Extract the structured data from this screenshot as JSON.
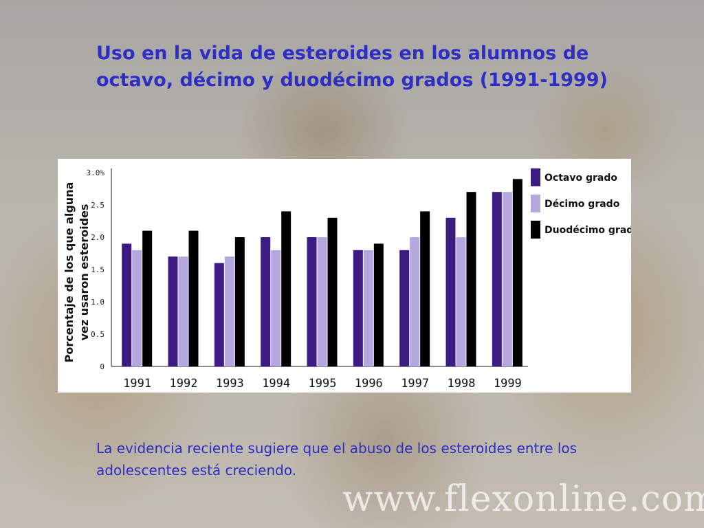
{
  "slide": {
    "title": "Uso en la vida de esteroides en los alumnos de octavo, décimo y duodécimo grados (1991-1999)",
    "caption": "La evidencia reciente sugiere que el abuso de los esteroides entre los adolescentes está creciendo.",
    "watermark": "www.flexonline.com"
  },
  "colors": {
    "title": "#2d2ec4",
    "octavo": "#3c1b82",
    "decimo": "#b5a7e0",
    "duodecimo": "#000000"
  },
  "chart_data": {
    "type": "bar",
    "ylabel_lines": [
      "Porcentaje de los que alguna",
      "vez usaron esteroides"
    ],
    "categories": [
      "1991",
      "1992",
      "1993",
      "1994",
      "1995",
      "1996",
      "1997",
      "1998",
      "1999"
    ],
    "yticks": [
      "0",
      "0.5",
      "1.0",
      "1.5",
      "2.0",
      "2.5",
      "3.0%"
    ],
    "ylim": [
      0,
      3.0
    ],
    "legend_position": "top-right",
    "series": [
      {
        "name": "Octavo grado",
        "color": "#3c1b82",
        "values": [
          1.9,
          1.7,
          1.6,
          2.0,
          2.0,
          1.8,
          1.8,
          2.3,
          2.7
        ]
      },
      {
        "name": "Décimo grado",
        "color": "#b5a7e0",
        "values": [
          1.8,
          1.7,
          1.7,
          1.8,
          2.0,
          1.8,
          2.0,
          2.0,
          2.7
        ]
      },
      {
        "name": "Duodécimo grado",
        "color": "#000000",
        "values": [
          2.1,
          2.1,
          2.0,
          2.4,
          2.3,
          1.9,
          2.4,
          2.7,
          2.9
        ]
      }
    ]
  }
}
